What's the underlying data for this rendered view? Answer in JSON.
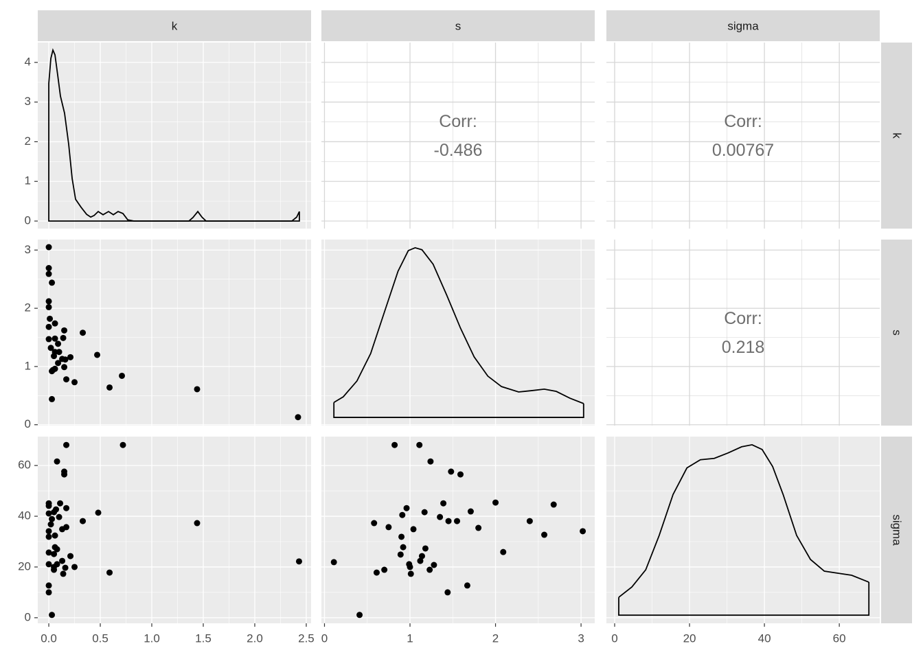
{
  "chart_data": {
    "type": "pairs",
    "variables": [
      "k",
      "s",
      "sigma"
    ],
    "x_axes": [
      {
        "xlim": [
          -0.107,
          2.547
        ],
        "xticks": [
          {
            "value": 0,
            "label": "0.0"
          },
          0.5,
          {
            "value": 1,
            "label": "1.0"
          },
          1.5,
          {
            "value": 2,
            "label": "2.0"
          },
          2.5
        ]
      },
      {
        "xlim": [
          -0.036,
          3.16
        ],
        "xticks": [
          0,
          1,
          2,
          3
        ]
      },
      {
        "xlim": [
          -2.2,
          70.8
        ],
        "xticks": [
          0,
          20,
          40,
          60
        ]
      }
    ],
    "y_axes": [
      {
        "ylim": [
          -0.19,
          4.5
        ],
        "yticks": [
          0,
          1,
          2,
          3,
          4
        ]
      },
      {
        "ylim": [
          -0.015,
          3.18
        ],
        "yticks": [
          0,
          1,
          2,
          3
        ]
      },
      {
        "ylim": [
          -2.2,
          71.4
        ],
        "yticks": [
          0,
          20,
          40,
          60
        ]
      }
    ],
    "panels": [
      [
        {
          "type": "density",
          "x": [
            0,
            0.02,
            0.04,
            0.06,
            0.087,
            0.113,
            0.153,
            0.193,
            0.227,
            0.26,
            0.313,
            0.367,
            0.407,
            0.44,
            0.48,
            0.527,
            0.58,
            0.627,
            0.673,
            0.72,
            0.767,
            0.827,
            1.36,
            1.4,
            1.447,
            1.487,
            1.527,
            2.36,
            2.407,
            2.433
          ],
          "y": [
            3.47,
            4.1,
            4.31,
            4.19,
            3.67,
            3.15,
            2.72,
            1.94,
            1.07,
            0.55,
            0.35,
            0.17,
            0.1,
            0.14,
            0.24,
            0.16,
            0.24,
            0.16,
            0.24,
            0.19,
            0.03,
            0,
            0,
            0.09,
            0.24,
            0.1,
            0,
            0,
            0.1,
            0.24
          ]
        },
        {
          "type": "corr",
          "label": "Corr:",
          "value": -0.486
        },
        {
          "type": "corr",
          "label": "Corr:",
          "value": 0.00767
        }
      ],
      [
        {
          "type": "scatter",
          "x": [
            0,
            0,
            0,
            0.03,
            0,
            0,
            0.01,
            0.06,
            0,
            0.15,
            0.33,
            0,
            0.06,
            0.14,
            0.09,
            0.02,
            0.06,
            0.1,
            0.47,
            0.21,
            0.13,
            0.16,
            0.05,
            0.09,
            0.15,
            0.06,
            0.04,
            0.03,
            0.17,
            0.25,
            0.71,
            0.59,
            1.44,
            0.03,
            2.42
          ],
          "y": [
            3.05,
            2.69,
            2.59,
            2.44,
            2.12,
            2.02,
            1.82,
            1.74,
            1.68,
            1.62,
            1.58,
            1.47,
            1.48,
            1.49,
            1.39,
            1.32,
            1.25,
            1.25,
            1.2,
            1.16,
            1.13,
            1.12,
            1.18,
            1.06,
            0.99,
            0.96,
            0.94,
            0.92,
            0.78,
            0.73,
            0.84,
            0.64,
            0.61,
            0.44,
            0.13
          ]
        },
        {
          "type": "density",
          "ylim": [
            -0.029,
            0.629
          ],
          "x": [
            0.11,
            0.22,
            0.38,
            0.54,
            0.7,
            0.86,
            0.98,
            1.06,
            1.14,
            1.27,
            1.43,
            1.59,
            1.75,
            1.91,
            2.07,
            2.27,
            2.43,
            2.57,
            2.71,
            2.87,
            3.03
          ],
          "y": [
            0.053,
            0.073,
            0.129,
            0.226,
            0.372,
            0.517,
            0.59,
            0.6,
            0.593,
            0.542,
            0.432,
            0.316,
            0.214,
            0.146,
            0.109,
            0.09,
            0.095,
            0.1,
            0.092,
            0.068,
            0.049
          ]
        },
        {
          "type": "corr",
          "label": "Corr:",
          "value": 0.218
        }
      ],
      [
        {
          "type": "scatter",
          "x": [
            0.17,
            0.72,
            0.08,
            0.15,
            0.15,
            0,
            0.11,
            0,
            0.07,
            0.17,
            0.05,
            0.48,
            0,
            0.1,
            0.03,
            0.33,
            1.44,
            0.02,
            0.17,
            0.13,
            0,
            0.06,
            0,
            0.06,
            0.08,
            0,
            0.05,
            0.21,
            0.13,
            2.43,
            0,
            0.08,
            0.05,
            0.25,
            0.16,
            0.05,
            0.59,
            0.14,
            0,
            0,
            0.03
          ],
          "y": [
            68.1,
            68.1,
            61.6,
            57.6,
            56.5,
            45.1,
            45.1,
            44.1,
            42.7,
            43.2,
            41.6,
            41.4,
            41.1,
            39.7,
            38.9,
            38.1,
            37.3,
            36.8,
            35.7,
            34.9,
            34.1,
            32.4,
            31.9,
            27.8,
            27,
            25.7,
            25.1,
            24.3,
            22.4,
            22.2,
            21.1,
            21.1,
            20,
            20,
            19.7,
            18.9,
            17.8,
            17.3,
            12.7,
            10,
            1.1
          ]
        },
        {
          "type": "scatter",
          "x": [
            0.82,
            1.11,
            1.24,
            1.48,
            1.59,
            2.0,
            2.68,
            1.39,
            0.96,
            1.17,
            1.71,
            0.91,
            1.35,
            1.45,
            1.55,
            2.4,
            0.58,
            0.75,
            1.04,
            1.8,
            3.02,
            2.57,
            0.9,
            0.92,
            1.18,
            2.09,
            0.89,
            1.14,
            1.12,
            0.11,
            1.28,
            0.99,
            1.0,
            0.7,
            0.61,
            1.23,
            1.01,
            1.67,
            1.44,
            0.41
          ],
          "y": [
            68.1,
            68.1,
            61.6,
            57.6,
            56.5,
            45.4,
            44.6,
            45.1,
            43.2,
            41.6,
            41.9,
            40.5,
            39.7,
            38.1,
            38.1,
            38.1,
            37.3,
            35.7,
            34.9,
            35.4,
            34.1,
            32.7,
            31.9,
            27.8,
            27.3,
            25.9,
            24.9,
            24.3,
            22.4,
            21.9,
            20.8,
            21.1,
            20,
            18.9,
            17.8,
            18.9,
            17.3,
            12.7,
            10,
            1.1
          ]
        },
        {
          "type": "density",
          "ylim": [
            -0.0012,
            0.0262
          ],
          "x": [
            1.1,
            4.6,
            8.3,
            11.9,
            15.6,
            19.3,
            22.9,
            26.6,
            30.3,
            33.9,
            36.7,
            39.4,
            42.2,
            45,
            48.6,
            52.3,
            56,
            59.6,
            63.3,
            67.9
          ],
          "y": [
            0.00262,
            0.00413,
            0.00665,
            0.0117,
            0.0177,
            0.0216,
            0.0228,
            0.023,
            0.0238,
            0.0247,
            0.025,
            0.0243,
            0.0218,
            0.0177,
            0.0117,
            0.00817,
            0.00645,
            0.00615,
            0.00585,
            0.00484
          ]
        }
      ]
    ]
  }
}
